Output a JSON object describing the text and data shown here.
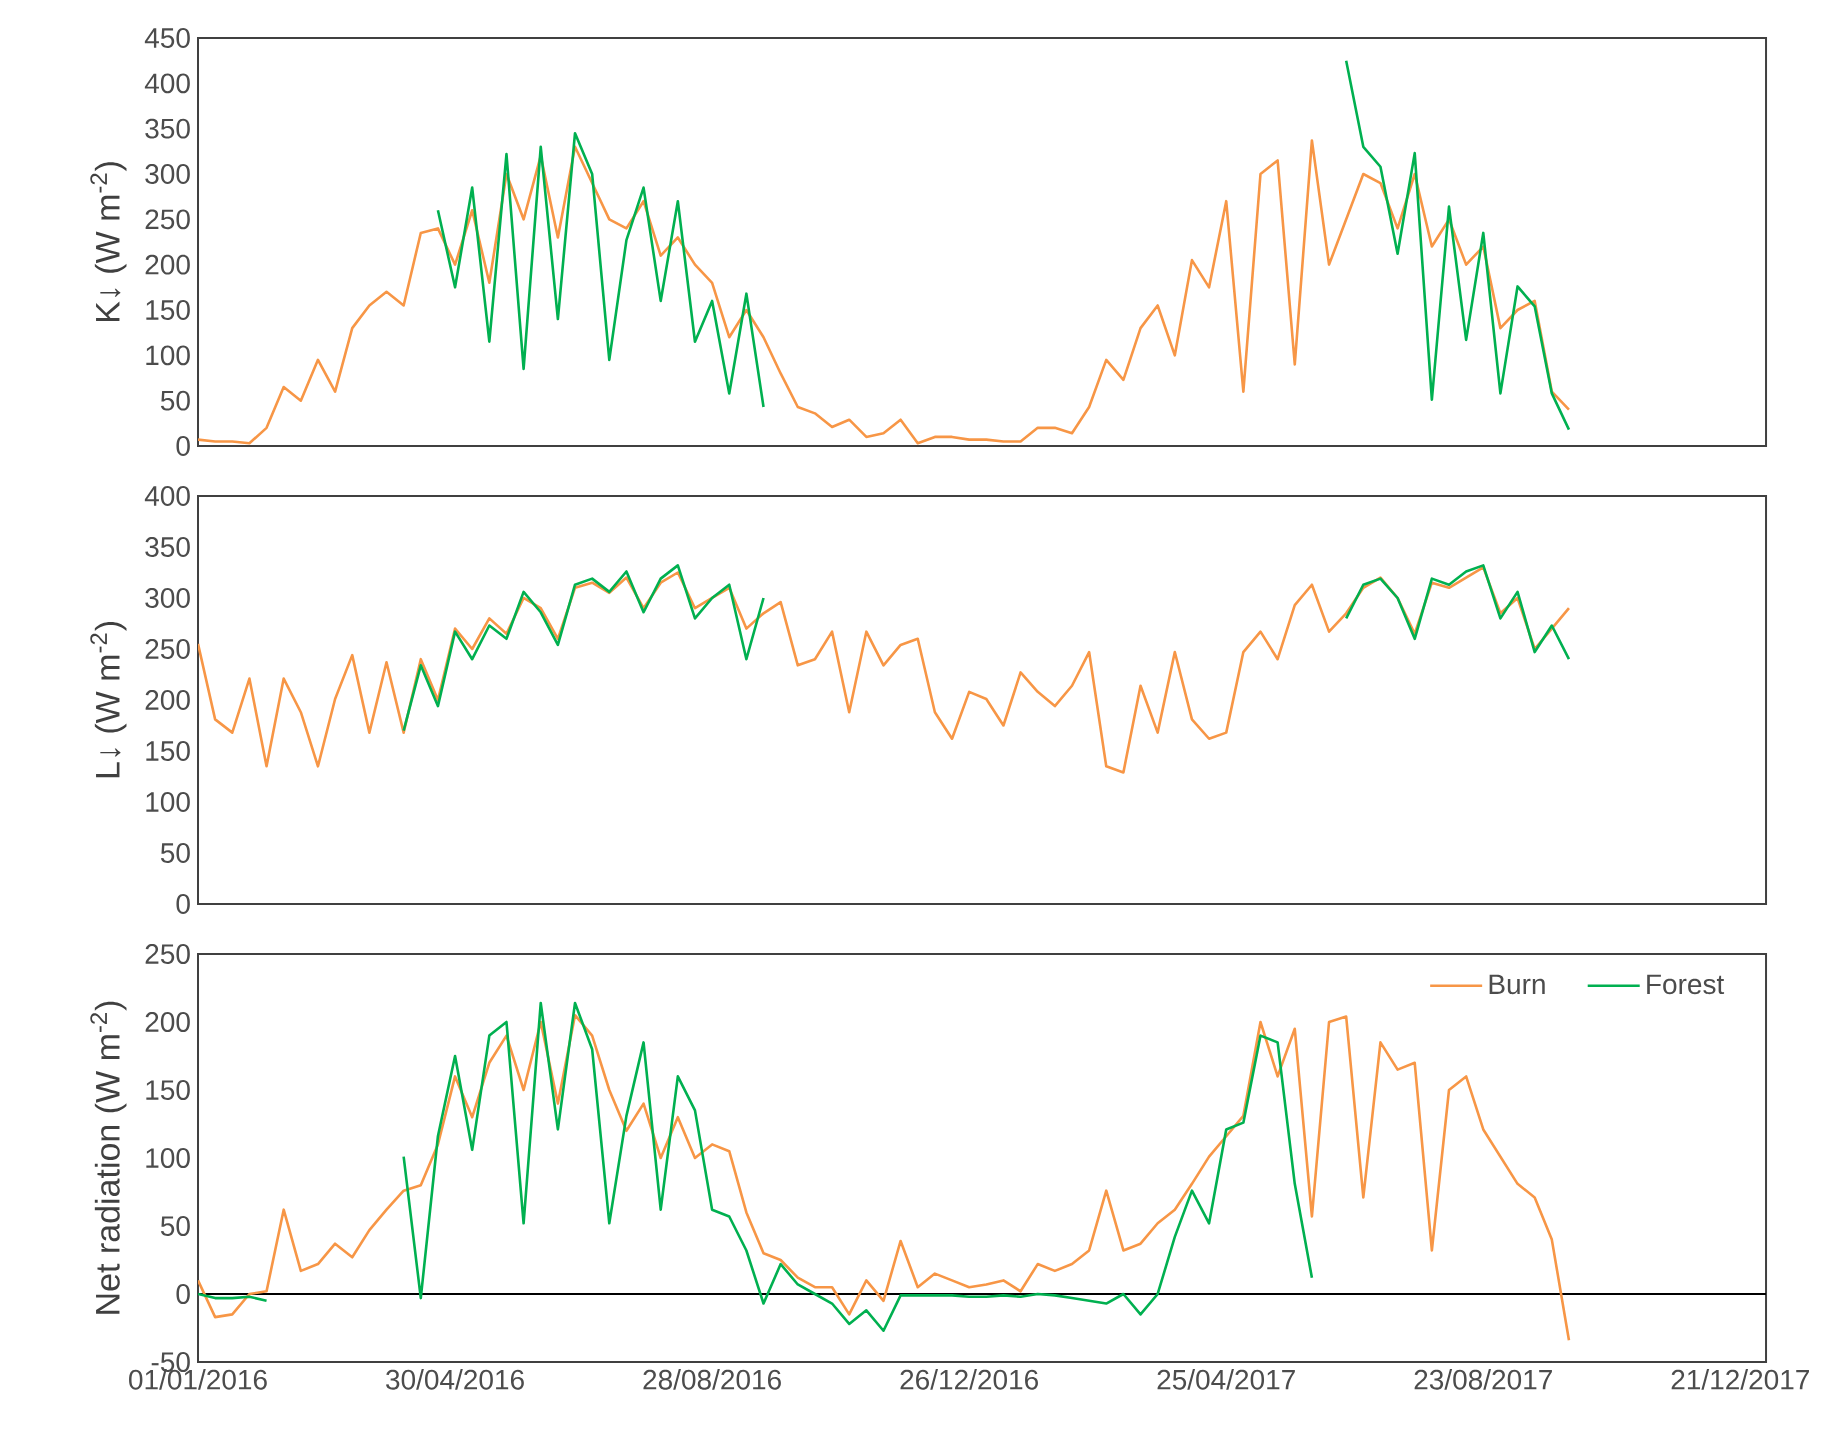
{
  "chart_data": [
    {
      "type": "line",
      "ylabel": "K↓ (W m$^{-2}$)",
      "tick_labels": "y",
      "xlim": [
        "2016-01-01",
        "2018-01-02"
      ],
      "ylim": [
        0,
        450
      ],
      "yticks": [
        0,
        50,
        100,
        150,
        200,
        250,
        300,
        350,
        400,
        450
      ],
      "x": [
        "2016-01-01",
        "2016-01-09",
        "2016-01-17",
        "2016-01-25",
        "2016-02-02",
        "2016-02-10",
        "2016-02-18",
        "2016-02-26",
        "2016-03-05",
        "2016-03-13",
        "2016-03-21",
        "2016-03-29",
        "2016-04-06",
        "2016-04-14",
        "2016-04-22",
        "2016-04-30",
        "2016-05-08",
        "2016-05-16",
        "2016-05-24",
        "2016-06-01",
        "2016-06-09",
        "2016-06-17",
        "2016-06-25",
        "2016-07-03",
        "2016-07-11",
        "2016-07-19",
        "2016-07-27",
        "2016-08-04",
        "2016-08-12",
        "2016-08-20",
        "2016-08-28",
        "2016-09-05",
        "2016-09-13",
        "2016-09-21",
        "2016-09-29",
        "2016-10-07",
        "2016-10-15",
        "2016-10-23",
        "2016-10-31",
        "2016-11-08",
        "2016-11-16",
        "2016-11-24",
        "2016-12-02",
        "2016-12-10",
        "2016-12-18",
        "2016-12-26",
        "2017-01-03",
        "2017-01-11",
        "2017-01-19",
        "2017-01-27",
        "2017-02-04",
        "2017-02-12",
        "2017-02-20",
        "2017-02-28",
        "2017-03-08",
        "2017-03-16",
        "2017-03-24",
        "2017-04-01",
        "2017-04-09",
        "2017-04-17",
        "2017-04-25",
        "2017-05-03",
        "2017-05-11",
        "2017-05-19",
        "2017-05-27",
        "2017-06-04",
        "2017-06-12",
        "2017-06-20",
        "2017-06-28",
        "2017-07-06",
        "2017-07-14",
        "2017-07-22",
        "2017-07-30",
        "2017-08-07",
        "2017-08-15",
        "2017-08-23",
        "2017-08-31",
        "2017-09-08",
        "2017-09-16",
        "2017-09-24",
        "2017-10-02"
      ],
      "series": [
        {
          "color": "#f79646",
          "values": [
            7,
            5,
            5,
            3,
            20,
            65,
            50,
            95,
            60,
            130,
            155,
            170,
            155,
            235,
            240,
            200,
            260,
            180,
            300,
            250,
            320,
            230,
            330,
            290,
            250,
            240,
            270,
            210,
            230,
            200,
            180,
            120,
            150,
            120,
            80,
            43,
            36,
            21,
            29,
            10,
            14,
            29,
            3,
            10,
            10,
            7,
            7,
            5,
            5,
            20,
            20,
            14,
            43,
            95,
            73,
            130,
            155,
            100,
            205,
            175,
            270,
            60,
            300,
            315,
            90,
            337,
            200,
            250,
            300,
            290,
            240,
            300,
            220,
            250,
            200,
            220,
            130,
            150,
            160,
            60,
            40
          ]
        },
        {
          "color": "#00b050",
          "values": [
            null,
            null,
            null,
            null,
            null,
            null,
            null,
            null,
            null,
            null,
            null,
            null,
            null,
            null,
            260,
            175,
            285,
            115,
            322,
            85,
            330,
            140,
            345,
            300,
            95,
            227,
            285,
            160,
            270,
            115,
            160,
            58,
            168,
            43,
            null,
            null,
            null,
            null,
            null,
            null,
            null,
            null,
            null,
            null,
            null,
            null,
            null,
            null,
            null,
            null,
            null,
            null,
            null,
            null,
            null,
            null,
            null,
            null,
            null,
            null,
            null,
            null,
            null,
            null,
            null,
            null,
            null,
            425,
            330,
            308,
            212,
            323,
            51,
            264,
            117,
            235,
            58,
            176,
            154,
            58,
            18
          ]
        }
      ]
    },
    {
      "type": "line",
      "ylabel": "L↓ (W m$^{-2}$)",
      "tick_labels": "y",
      "xlim": [
        "2016-01-01",
        "2018-01-02"
      ],
      "ylim": [
        0,
        400
      ],
      "yticks": [
        0,
        50,
        100,
        150,
        200,
        250,
        300,
        350,
        400
      ],
      "x": [
        "2016-01-01",
        "2016-01-09",
        "2016-01-17",
        "2016-01-25",
        "2016-02-02",
        "2016-02-10",
        "2016-02-18",
        "2016-02-26",
        "2016-03-05",
        "2016-03-13",
        "2016-03-21",
        "2016-03-29",
        "2016-04-06",
        "2016-04-14",
        "2016-04-22",
        "2016-04-30",
        "2016-05-08",
        "2016-05-16",
        "2016-05-24",
        "2016-06-01",
        "2016-06-09",
        "2016-06-17",
        "2016-06-25",
        "2016-07-03",
        "2016-07-11",
        "2016-07-19",
        "2016-07-27",
        "2016-08-04",
        "2016-08-12",
        "2016-08-20",
        "2016-08-28",
        "2016-09-05",
        "2016-09-13",
        "2016-09-21",
        "2016-09-29",
        "2016-10-07",
        "2016-10-15",
        "2016-10-23",
        "2016-10-31",
        "2016-11-08",
        "2016-11-16",
        "2016-11-24",
        "2016-12-02",
        "2016-12-10",
        "2016-12-18",
        "2016-12-26",
        "2017-01-03",
        "2017-01-11",
        "2017-01-19",
        "2017-01-27",
        "2017-02-04",
        "2017-02-12",
        "2017-02-20",
        "2017-02-28",
        "2017-03-08",
        "2017-03-16",
        "2017-03-24",
        "2017-04-01",
        "2017-04-09",
        "2017-04-17",
        "2017-04-25",
        "2017-05-03",
        "2017-05-11",
        "2017-05-19",
        "2017-05-27",
        "2017-06-04",
        "2017-06-12",
        "2017-06-20",
        "2017-06-28",
        "2017-07-06",
        "2017-07-14",
        "2017-07-22",
        "2017-07-30",
        "2017-08-07",
        "2017-08-15",
        "2017-08-23",
        "2017-08-31",
        "2017-09-08",
        "2017-09-16",
        "2017-09-24",
        "2017-10-02"
      ],
      "series": [
        {
          "color": "#f79646",
          "values": [
            255,
            181,
            168,
            221,
            135,
            221,
            188,
            135,
            201,
            244,
            168,
            237,
            168,
            240,
            200,
            270,
            250,
            280,
            265,
            300,
            290,
            260,
            310,
            315,
            305,
            320,
            290,
            315,
            325,
            290,
            300,
            310,
            270,
            285,
            296,
            234,
            240,
            267,
            188,
            267,
            234,
            254,
            260,
            188,
            162,
            208,
            201,
            175,
            227,
            208,
            194,
            214,
            247,
            135,
            129,
            214,
            168,
            247,
            181,
            162,
            168,
            247,
            267,
            240,
            293,
            313,
            267,
            285,
            310,
            320,
            300,
            265,
            315,
            310,
            320,
            330,
            285,
            300,
            250,
            270,
            290
          ]
        },
        {
          "color": "#00b050",
          "values": [
            null,
            null,
            null,
            null,
            null,
            null,
            null,
            null,
            null,
            null,
            null,
            null,
            170,
            234,
            194,
            267,
            240,
            273,
            260,
            306,
            286,
            254,
            313,
            319,
            306,
            326,
            286,
            319,
            332,
            280,
            300,
            313,
            240,
            300,
            null,
            null,
            null,
            null,
            null,
            null,
            null,
            null,
            null,
            null,
            null,
            null,
            null,
            null,
            null,
            null,
            null,
            null,
            null,
            null,
            null,
            null,
            null,
            null,
            null,
            null,
            null,
            null,
            null,
            null,
            null,
            null,
            null,
            280,
            313,
            319,
            300,
            260,
            319,
            313,
            326,
            332,
            280,
            306,
            247,
            273,
            240
          ]
        }
      ]
    },
    {
      "type": "line",
      "ylabel": "Net radiation (W m$^{-2}$)",
      "legend": "top right",
      "xlim": [
        "2016-01-01",
        "2018-01-02"
      ],
      "ylim": [
        -50,
        250
      ],
      "yticks": [
        -50,
        0,
        50,
        100,
        150,
        200,
        250
      ],
      "xticks": [
        {
          "value": "2016-01-01",
          "label": "01/01/2016"
        },
        {
          "value": "2016-04-30",
          "label": "30/04/2016"
        },
        {
          "value": "2016-08-28",
          "label": "28/08/2016"
        },
        {
          "value": "2016-12-26",
          "label": "26/12/2016"
        },
        {
          "value": "2017-04-25",
          "label": "25/04/2017"
        },
        {
          "value": "2017-08-23",
          "label": "23/08/2017"
        },
        {
          "value": "2017-12-21",
          "label": "21/12/2017"
        }
      ],
      "ref_lines": [
        {
          "axis": "y",
          "value": 0,
          "color": "#000000"
        }
      ],
      "x": [
        "2016-01-01",
        "2016-01-09",
        "2016-01-17",
        "2016-01-25",
        "2016-02-02",
        "2016-02-10",
        "2016-02-18",
        "2016-02-26",
        "2016-03-05",
        "2016-03-13",
        "2016-03-21",
        "2016-03-29",
        "2016-04-06",
        "2016-04-14",
        "2016-04-22",
        "2016-04-30",
        "2016-05-08",
        "2016-05-16",
        "2016-05-24",
        "2016-06-01",
        "2016-06-09",
        "2016-06-17",
        "2016-06-25",
        "2016-07-03",
        "2016-07-11",
        "2016-07-19",
        "2016-07-27",
        "2016-08-04",
        "2016-08-12",
        "2016-08-20",
        "2016-08-28",
        "2016-09-05",
        "2016-09-13",
        "2016-09-21",
        "2016-09-29",
        "2016-10-07",
        "2016-10-15",
        "2016-10-23",
        "2016-10-31",
        "2016-11-08",
        "2016-11-16",
        "2016-11-24",
        "2016-12-02",
        "2016-12-10",
        "2016-12-18",
        "2016-12-26",
        "2017-01-03",
        "2017-01-11",
        "2017-01-19",
        "2017-01-27",
        "2017-02-04",
        "2017-02-12",
        "2017-02-20",
        "2017-02-28",
        "2017-03-08",
        "2017-03-16",
        "2017-03-24",
        "2017-04-01",
        "2017-04-09",
        "2017-04-17",
        "2017-04-25",
        "2017-05-03",
        "2017-05-11",
        "2017-05-19",
        "2017-05-27",
        "2017-06-04",
        "2017-06-12",
        "2017-06-20",
        "2017-06-28",
        "2017-07-06",
        "2017-07-14",
        "2017-07-22",
        "2017-07-30",
        "2017-08-07",
        "2017-08-15",
        "2017-08-23",
        "2017-08-31",
        "2017-09-08",
        "2017-09-16",
        "2017-09-24",
        "2017-10-02"
      ],
      "series": [
        {
          "name": "Burn",
          "color": "#f79646",
          "values": [
            10,
            -17,
            -15,
            0,
            2,
            62,
            17,
            22,
            37,
            27,
            47,
            62,
            76,
            80,
            110,
            160,
            130,
            170,
            190,
            150,
            200,
            140,
            205,
            190,
            150,
            120,
            140,
            100,
            130,
            100,
            110,
            105,
            60,
            30,
            25,
            12,
            5,
            5,
            -15,
            10,
            -5,
            39,
            5,
            15,
            10,
            5,
            7,
            10,
            2,
            22,
            17,
            22,
            32,
            76,
            32,
            37,
            52,
            62,
            81,
            101,
            116,
            131,
            200,
            160,
            195,
            57,
            200,
            204,
            71,
            185,
            165,
            170,
            32,
            150,
            160,
            121,
            101,
            81,
            71,
            40,
            -34
          ]
        },
        {
          "name": "Forest",
          "color": "#00b050",
          "values": [
            0,
            -3,
            -3,
            -2,
            -5,
            null,
            null,
            null,
            null,
            null,
            null,
            null,
            101,
            -3,
            116,
            175,
            106,
            190,
            200,
            52,
            214,
            121,
            214,
            180,
            52,
            131,
            185,
            62,
            160,
            135,
            62,
            57,
            32,
            -7,
            22,
            7,
            0,
            -7,
            -22,
            -12,
            -27,
            -1,
            -1,
            -1,
            -1,
            -2,
            -2,
            -1,
            -2,
            0,
            -1,
            -3,
            -5,
            -7,
            0,
            -15,
            0,
            42,
            76,
            52,
            121,
            126,
            190,
            185,
            81,
            12,
            null,
            null,
            null,
            null,
            null,
            null,
            null,
            null,
            null,
            null,
            null,
            null,
            null,
            null,
            null
          ]
        }
      ]
    }
  ]
}
